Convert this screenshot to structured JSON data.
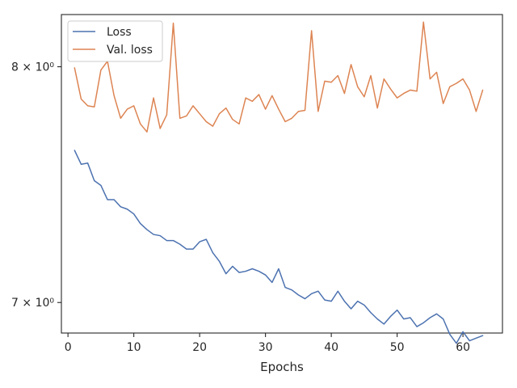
{
  "chart_data": {
    "type": "line",
    "title": "",
    "xlabel": "Epochs",
    "ylabel": "",
    "yscale": "log",
    "grid": false,
    "legend_position": "top-left",
    "xlim": [
      -1,
      66
    ],
    "ylim": [
      6.88,
      8.24
    ],
    "x_ticks": [
      0,
      10,
      20,
      30,
      40,
      50,
      60
    ],
    "x_tick_labels": [
      "0",
      "10",
      "20",
      "30",
      "40",
      "50",
      "60"
    ],
    "y_ticks": [
      7,
      8
    ],
    "y_tick_labels": [
      "7 × 10⁰",
      "8 × 10⁰"
    ],
    "x": [
      1,
      2,
      3,
      4,
      5,
      6,
      7,
      8,
      9,
      10,
      11,
      12,
      13,
      14,
      15,
      16,
      17,
      18,
      19,
      20,
      21,
      22,
      23,
      24,
      25,
      26,
      27,
      28,
      29,
      30,
      31,
      32,
      33,
      34,
      35,
      36,
      37,
      38,
      39,
      40,
      41,
      42,
      43,
      44,
      45,
      46,
      47,
      48,
      49,
      50,
      51,
      52,
      53,
      54,
      55,
      56,
      57,
      58,
      59,
      60,
      61,
      62,
      63
    ],
    "series": [
      {
        "name": "Loss",
        "color": "#4c72b0",
        "values": [
          7.63,
          7.57,
          7.575,
          7.5,
          7.48,
          7.42,
          7.42,
          7.39,
          7.38,
          7.36,
          7.32,
          7.295,
          7.275,
          7.27,
          7.25,
          7.25,
          7.235,
          7.215,
          7.215,
          7.245,
          7.255,
          7.2,
          7.165,
          7.115,
          7.145,
          7.12,
          7.125,
          7.135,
          7.125,
          7.11,
          7.08,
          7.135,
          7.06,
          7.05,
          7.03,
          7.015,
          7.035,
          7.045,
          7.01,
          7.005,
          7.045,
          7.005,
          6.975,
          7.005,
          6.99,
          6.96,
          6.935,
          6.915,
          6.945,
          6.97,
          6.935,
          6.94,
          6.905,
          6.92,
          6.94,
          6.955,
          6.935,
          6.875,
          6.84,
          6.885,
          6.85,
          6.86,
          6.87
        ]
      },
      {
        "name": "Val. loss",
        "color": "#dd8452",
        "values": [
          7.995,
          7.855,
          7.825,
          7.82,
          7.985,
          8.025,
          7.87,
          7.77,
          7.81,
          7.825,
          7.745,
          7.71,
          7.86,
          7.725,
          7.785,
          8.2,
          7.77,
          7.78,
          7.825,
          7.79,
          7.755,
          7.735,
          7.79,
          7.815,
          7.765,
          7.745,
          7.86,
          7.845,
          7.875,
          7.81,
          7.87,
          7.81,
          7.755,
          7.77,
          7.8,
          7.805,
          8.165,
          7.8,
          7.935,
          7.93,
          7.96,
          7.88,
          8.01,
          7.91,
          7.865,
          7.96,
          7.815,
          7.945,
          7.9,
          7.86,
          7.88,
          7.895,
          7.89,
          8.205,
          7.945,
          7.975,
          7.835,
          7.91,
          7.925,
          7.945,
          7.895,
          7.8,
          7.895
        ]
      }
    ]
  }
}
